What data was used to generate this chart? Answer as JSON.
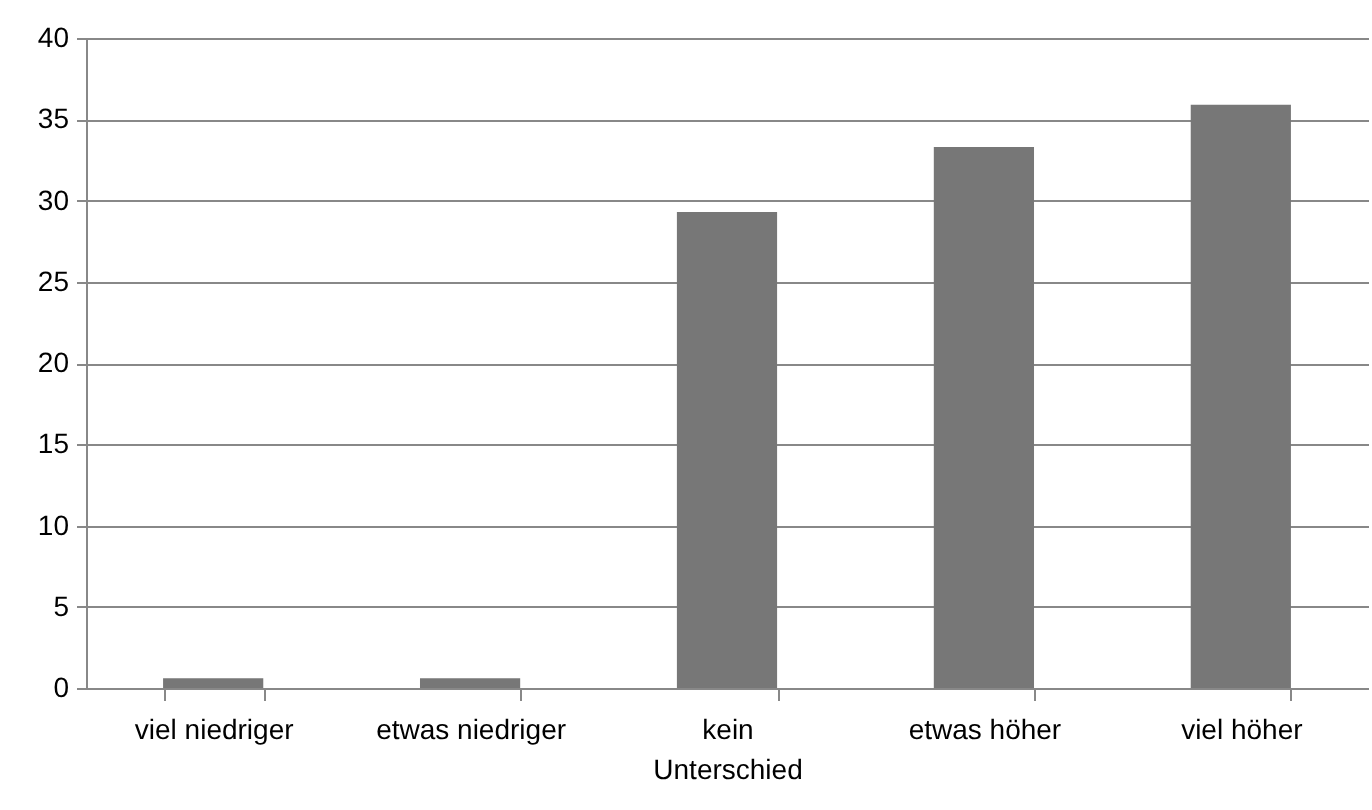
{
  "chart_data": {
    "type": "bar",
    "categories": [
      "viel niedriger",
      "etwas niedriger",
      "kein Unterschied",
      "etwas höher",
      "viel höher"
    ],
    "values": [
      0.6,
      0.6,
      29.3,
      33.3,
      35.9
    ],
    "color": "#777777",
    "ylim": [
      0,
      40
    ],
    "yticks": [
      0,
      5,
      10,
      15,
      20,
      25,
      30,
      35,
      40
    ],
    "grid": "y"
  }
}
